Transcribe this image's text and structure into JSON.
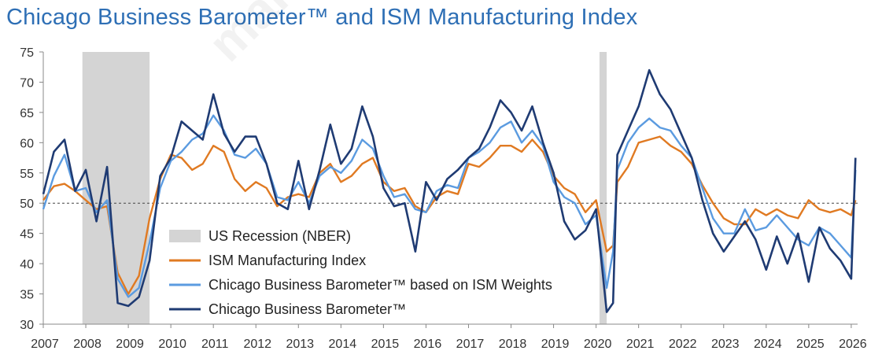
{
  "title": "Chicago Business Barometer™ and ISM Manufacturing Index",
  "watermark": "martinca",
  "chart_data": {
    "type": "line",
    "title": "Chicago Business Barometer™ and ISM Manufacturing Index",
    "xlabel": "",
    "ylabel": "",
    "ylim": [
      30,
      75
    ],
    "xlim": [
      2007,
      2026.15
    ],
    "yticks": [
      30,
      35,
      40,
      45,
      50,
      55,
      60,
      65,
      70,
      75
    ],
    "xticks": [
      "2007",
      "2008",
      "2009",
      "2010",
      "2011",
      "2012",
      "2013",
      "2014",
      "2015",
      "2016",
      "2017",
      "2018",
      "2019",
      "2020",
      "2021",
      "2022",
      "2023",
      "2024",
      "2025",
      "2026"
    ],
    "reference_line": 50,
    "grid": false,
    "legend_position": "lower-left of plot",
    "recessions": [
      {
        "name": "US Recession (NBER)",
        "start": 2007.92,
        "end": 2009.5
      },
      {
        "name": "US Recession (NBER)",
        "start": 2020.08,
        "end": 2020.25
      }
    ],
    "legend": [
      {
        "label": "US Recession (NBER)",
        "kind": "band",
        "color": "#d4d4d4"
      },
      {
        "label": "ISM Manufacturing Index",
        "kind": "line",
        "color": "#e07a22"
      },
      {
        "label": "Chicago Business Barometer™ based on ISM Weights",
        "kind": "line",
        "color": "#5b9be0"
      },
      {
        "label": "Chicago Business Barometer™",
        "kind": "line",
        "color": "#1f3b73"
      }
    ],
    "series": [
      {
        "name": "ISM Manufacturing Index",
        "color": "#e07a22",
        "x": [
          2007.0,
          2007.25,
          2007.5,
          2007.75,
          2008.0,
          2008.25,
          2008.5,
          2008.75,
          2009.0,
          2009.25,
          2009.5,
          2009.75,
          2010.0,
          2010.25,
          2010.5,
          2010.75,
          2011.0,
          2011.25,
          2011.5,
          2011.75,
          2012.0,
          2012.25,
          2012.5,
          2012.75,
          2013.0,
          2013.25,
          2013.5,
          2013.75,
          2014.0,
          2014.25,
          2014.5,
          2014.75,
          2015.0,
          2015.25,
          2015.5,
          2015.75,
          2016.0,
          2016.25,
          2016.5,
          2016.75,
          2017.0,
          2017.25,
          2017.5,
          2017.75,
          2018.0,
          2018.25,
          2018.5,
          2018.75,
          2019.0,
          2019.25,
          2019.5,
          2019.75,
          2020.0,
          2020.25,
          2020.4,
          2020.5,
          2020.75,
          2021.0,
          2021.25,
          2021.5,
          2021.75,
          2022.0,
          2022.25,
          2022.5,
          2022.75,
          2023.0,
          2023.25,
          2023.5,
          2023.75,
          2024.0,
          2024.25,
          2024.5,
          2024.75,
          2025.0,
          2025.25,
          2025.5,
          2025.75,
          2026.0,
          2026.1
        ],
        "values": [
          50.5,
          52.8,
          53.2,
          52.0,
          50.5,
          49.0,
          49.5,
          38.5,
          35.0,
          38.0,
          47.5,
          54.0,
          58.0,
          57.5,
          55.5,
          56.5,
          59.5,
          58.5,
          54.0,
          52.0,
          53.5,
          52.5,
          49.5,
          51.0,
          51.5,
          51.0,
          55.0,
          56.5,
          53.5,
          54.5,
          56.5,
          57.5,
          53.5,
          52.0,
          52.5,
          49.5,
          48.5,
          51.0,
          52.0,
          51.5,
          56.5,
          56.0,
          57.5,
          59.5,
          59.5,
          58.5,
          60.5,
          58.5,
          54.5,
          52.5,
          51.5,
          48.5,
          50.5,
          42.0,
          43.0,
          53.5,
          56.0,
          60.0,
          60.5,
          61.0,
          59.5,
          58.5,
          56.5,
          53.0,
          50.0,
          47.5,
          46.5,
          46.5,
          49.0,
          48.0,
          49.0,
          48.0,
          47.5,
          50.5,
          49.0,
          48.5,
          49.0,
          48.0,
          50.5
        ]
      },
      {
        "name": "Chicago Business Barometer™ based on ISM Weights",
        "color": "#5b9be0",
        "x": [
          2007.0,
          2007.25,
          2007.5,
          2007.75,
          2008.0,
          2008.25,
          2008.5,
          2008.75,
          2009.0,
          2009.25,
          2009.5,
          2009.75,
          2010.0,
          2010.25,
          2010.5,
          2010.75,
          2011.0,
          2011.25,
          2011.5,
          2011.75,
          2012.0,
          2012.25,
          2012.5,
          2012.75,
          2013.0,
          2013.25,
          2013.5,
          2013.75,
          2014.0,
          2014.25,
          2014.5,
          2014.75,
          2015.0,
          2015.25,
          2015.5,
          2015.75,
          2016.0,
          2016.25,
          2016.5,
          2016.75,
          2017.0,
          2017.25,
          2017.5,
          2017.75,
          2018.0,
          2018.25,
          2018.5,
          2018.75,
          2019.0,
          2019.25,
          2019.5,
          2019.75,
          2020.0,
          2020.25,
          2020.4,
          2020.5,
          2020.75,
          2021.0,
          2021.25,
          2021.5,
          2021.75,
          2022.0,
          2022.25,
          2022.5,
          2022.75,
          2023.0,
          2023.25,
          2023.5,
          2023.75,
          2024.0,
          2024.25,
          2024.5,
          2024.75,
          2025.0,
          2025.25,
          2025.5,
          2025.75,
          2026.0,
          2026.1
        ],
        "values": [
          49.0,
          54.5,
          58.0,
          52.0,
          52.5,
          48.5,
          50.5,
          37.5,
          34.5,
          36.0,
          43.5,
          52.5,
          57.0,
          58.5,
          60.5,
          61.5,
          64.5,
          62.0,
          58.0,
          57.5,
          59.0,
          56.5,
          51.0,
          50.5,
          53.5,
          50.0,
          54.5,
          56.0,
          55.0,
          57.0,
          60.5,
          59.0,
          54.5,
          51.0,
          51.5,
          49.0,
          48.5,
          52.0,
          53.0,
          52.5,
          57.5,
          58.5,
          60.0,
          62.5,
          63.5,
          60.0,
          62.0,
          59.5,
          53.5,
          51.0,
          50.0,
          46.5,
          48.0,
          36.0,
          42.0,
          55.5,
          60.0,
          62.5,
          64.0,
          62.5,
          62.0,
          59.5,
          57.5,
          52.5,
          47.5,
          45.0,
          45.0,
          49.0,
          45.5,
          46.0,
          48.0,
          46.0,
          44.0,
          43.0,
          46.0,
          45.0,
          43.0,
          41.0,
          55.5
        ]
      },
      {
        "name": "Chicago Business Barometer™",
        "color": "#1f3b73",
        "x": [
          2007.0,
          2007.25,
          2007.5,
          2007.75,
          2008.0,
          2008.25,
          2008.5,
          2008.75,
          2009.0,
          2009.25,
          2009.5,
          2009.75,
          2010.0,
          2010.25,
          2010.5,
          2010.75,
          2011.0,
          2011.25,
          2011.5,
          2011.75,
          2012.0,
          2012.25,
          2012.5,
          2012.75,
          2013.0,
          2013.25,
          2013.5,
          2013.75,
          2014.0,
          2014.25,
          2014.5,
          2014.75,
          2015.0,
          2015.25,
          2015.5,
          2015.75,
          2016.0,
          2016.25,
          2016.5,
          2016.75,
          2017.0,
          2017.25,
          2017.5,
          2017.75,
          2018.0,
          2018.25,
          2018.5,
          2018.75,
          2019.0,
          2019.25,
          2019.5,
          2019.75,
          2020.0,
          2020.25,
          2020.4,
          2020.5,
          2020.75,
          2021.0,
          2021.25,
          2021.5,
          2021.75,
          2022.0,
          2022.25,
          2022.5,
          2022.75,
          2023.0,
          2023.25,
          2023.5,
          2023.75,
          2024.0,
          2024.25,
          2024.5,
          2024.75,
          2025.0,
          2025.25,
          2025.5,
          2025.75,
          2026.0,
          2026.1
        ],
        "values": [
          51.5,
          58.5,
          60.5,
          52.0,
          55.5,
          47.0,
          56.0,
          33.5,
          33.0,
          34.5,
          40.5,
          54.5,
          57.5,
          63.5,
          62.0,
          60.5,
          68.0,
          61.5,
          58.5,
          61.0,
          61.0,
          56.5,
          50.0,
          49.0,
          57.0,
          49.0,
          55.5,
          63.0,
          56.5,
          59.0,
          66.0,
          61.0,
          52.5,
          49.5,
          50.0,
          42.0,
          53.5,
          50.5,
          54.0,
          55.5,
          57.5,
          59.0,
          62.5,
          67.0,
          65.0,
          62.0,
          66.0,
          60.0,
          55.0,
          47.0,
          44.0,
          45.5,
          49.0,
          32.0,
          33.5,
          58.0,
          62.0,
          66.0,
          72.0,
          68.0,
          65.5,
          61.5,
          57.5,
          50.5,
          45.0,
          42.0,
          44.5,
          47.0,
          44.0,
          39.0,
          44.5,
          40.0,
          45.0,
          37.0,
          46.0,
          42.5,
          40.5,
          37.5,
          57.5
        ]
      }
    ]
  }
}
